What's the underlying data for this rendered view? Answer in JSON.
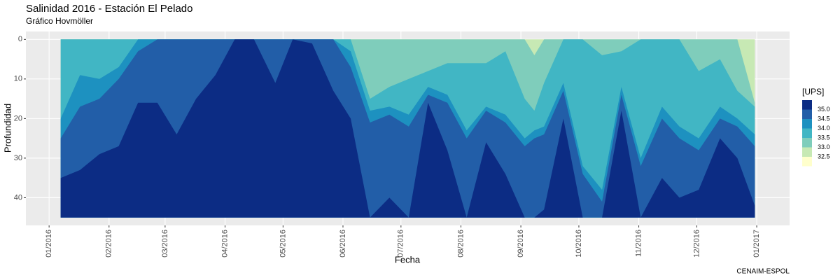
{
  "chart_data": {
    "type": "contour",
    "title": "Salinidad 2016 - Estación El Pelado",
    "subtitle": "Gráfico Hovmöller",
    "x_label": "Fecha",
    "y_label": "Profundidad",
    "caption": "CENAIM-ESPOL",
    "legend_title": "[UPS]",
    "x": [
      6,
      16,
      26,
      36,
      46,
      56,
      66,
      76,
      86,
      96,
      106,
      117,
      126,
      136,
      147,
      156,
      166,
      176,
      186,
      196,
      206,
      216,
      226,
      236,
      246,
      251,
      256,
      266,
      276,
      286,
      296,
      306,
      317,
      326,
      336,
      347,
      356,
      365
    ],
    "depth_range": [
      0,
      45
    ],
    "base_color": "#ffffcc",
    "series": [
      {
        "name": "35.0",
        "color": "#0c2c84",
        "values": [
          35,
          33,
          29,
          27,
          16,
          16,
          24,
          15,
          9,
          0,
          0,
          11,
          0,
          1,
          13,
          20,
          45,
          40,
          45,
          16,
          28,
          45,
          26,
          34,
          45,
          45,
          43,
          20,
          45,
          45,
          18,
          45,
          35,
          40,
          38,
          25,
          30,
          42
        ]
      },
      {
        "name": "34.5",
        "color": "#225ea8",
        "values": [
          25,
          17,
          15,
          10,
          3,
          0,
          0,
          0,
          0,
          0,
          0,
          0,
          0,
          0,
          0,
          7,
          21,
          19,
          22,
          14,
          16,
          25,
          18,
          21,
          27,
          25,
          24,
          13,
          34,
          41,
          14,
          32,
          20,
          25,
          28,
          20,
          22,
          27
        ]
      },
      {
        "name": "34.0",
        "color": "#1d91c0",
        "values": [
          20,
          9,
          10,
          7,
          0,
          0,
          0,
          0,
          0,
          0,
          0,
          0,
          0,
          0,
          0,
          3,
          18,
          17,
          19,
          12,
          14,
          23,
          17,
          19,
          25,
          23,
          22,
          11,
          32,
          38,
          12,
          30,
          17,
          22,
          25,
          17,
          20,
          24
        ]
      },
      {
        "name": "33.5",
        "color": "#41b6c4",
        "values": [
          0,
          0,
          0,
          0,
          0,
          0,
          0,
          0,
          0,
          0,
          0,
          0,
          0,
          0,
          0,
          0,
          15,
          12,
          10,
          8,
          6,
          6,
          6,
          3,
          15,
          18,
          11,
          0,
          0,
          4,
          3,
          0,
          0,
          0,
          8,
          5,
          13,
          17
        ]
      },
      {
        "name": "33.0",
        "color": "#7fcdbb",
        "values": [
          0,
          0,
          0,
          0,
          0,
          0,
          0,
          0,
          0,
          0,
          0,
          0,
          0,
          0,
          0,
          0,
          0,
          0,
          0,
          0,
          0,
          0,
          0,
          0,
          0,
          4,
          0,
          0,
          0,
          0,
          0,
          0,
          0,
          0,
          0,
          0,
          0,
          16
        ]
      },
      {
        "name": "32.5",
        "color": "#c7e9b4",
        "values": [
          0,
          0,
          0,
          0,
          0,
          0,
          0,
          0,
          0,
          0,
          0,
          0,
          0,
          0,
          0,
          0,
          0,
          0,
          0,
          0,
          0,
          0,
          0,
          0,
          0,
          0,
          0,
          0,
          0,
          0,
          0,
          0,
          0,
          0,
          0,
          0,
          0,
          0
        ]
      }
    ],
    "xlim": [
      -12,
      383
    ],
    "xticks": [
      {
        "value": 0,
        "label": "01/2016"
      },
      {
        "value": 31,
        "label": "02/2016"
      },
      {
        "value": 60,
        "label": "03/2016"
      },
      {
        "value": 91,
        "label": "04/2016"
      },
      {
        "value": 121,
        "label": "05/2016"
      },
      {
        "value": 152,
        "label": "06/2016"
      },
      {
        "value": 182,
        "label": "07/2016"
      },
      {
        "value": 213,
        "label": "08/2016"
      },
      {
        "value": 244,
        "label": "09/2016"
      },
      {
        "value": 274,
        "label": "10/2016"
      },
      {
        "value": 305,
        "label": "11/2016"
      },
      {
        "value": 335,
        "label": "12/2016"
      },
      {
        "value": 366,
        "label": "01/2017"
      }
    ],
    "ylim": [
      -2,
      47
    ],
    "y_reversed": true,
    "yticks": [
      0,
      10,
      20,
      30,
      40
    ],
    "grid": true
  }
}
